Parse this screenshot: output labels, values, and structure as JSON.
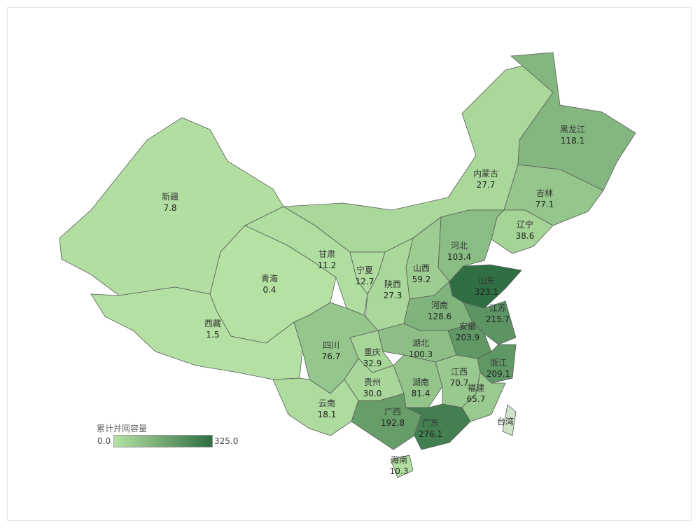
{
  "legend": {
    "title": "累计并网容量",
    "min_label": "0.0",
    "max_label": "325.0",
    "min": 0,
    "max": 325,
    "color_low": "#b5e2a3",
    "color_high": "#2f6d42"
  },
  "no_data_color": "#cfe3c8",
  "provinces": [
    {
      "id": "xinjiang",
      "name": "新疆",
      "value": 7.8,
      "display": "7.8"
    },
    {
      "id": "xizang",
      "name": "西藏",
      "value": 1.5,
      "display": "1.5"
    },
    {
      "id": "qinghai",
      "name": "青海",
      "value": 0.4,
      "display": "0.4"
    },
    {
      "id": "gansu",
      "name": "甘肃",
      "value": 11.2,
      "display": "11.2"
    },
    {
      "id": "neimenggu",
      "name": "内蒙古",
      "value": 27.7,
      "display": "27.7"
    },
    {
      "id": "heilongjiang",
      "name": "黑龙江",
      "value": 118.1,
      "display": "118.1"
    },
    {
      "id": "jilin",
      "name": "吉林",
      "value": 77.1,
      "display": "77.1"
    },
    {
      "id": "liaoning",
      "name": "辽宁",
      "value": 38.6,
      "display": "38.6"
    },
    {
      "id": "hebei",
      "name": "河北",
      "value": 103.4,
      "display": "103.4"
    },
    {
      "id": "shanxi",
      "name": "山西",
      "value": 59.2,
      "display": "59.2"
    },
    {
      "id": "shaanxi",
      "name": "陕西",
      "value": 27.3,
      "display": "27.3"
    },
    {
      "id": "ningxia",
      "name": "宁夏",
      "value": 12.7,
      "display": "12.7"
    },
    {
      "id": "shandong",
      "name": "山东",
      "value": 323.1,
      "display": "323.1"
    },
    {
      "id": "henan",
      "name": "河南",
      "value": 128.6,
      "display": "128.6"
    },
    {
      "id": "jiangsu",
      "name": "江苏",
      "value": 215.7,
      "display": "215.7"
    },
    {
      "id": "anhui",
      "name": "安徽",
      "value": 203.9,
      "display": "203.9"
    },
    {
      "id": "zhejiang",
      "name": "浙江",
      "value": 209.1,
      "display": "209.1"
    },
    {
      "id": "hubei",
      "name": "湖北",
      "value": 100.3,
      "display": "100.3"
    },
    {
      "id": "chongqing",
      "name": "重庆",
      "value": 32.9,
      "display": "32.9"
    },
    {
      "id": "sichuan",
      "name": "四川",
      "value": 76.7,
      "display": "76.7"
    },
    {
      "id": "guizhou",
      "name": "贵州",
      "value": 30.0,
      "display": "30.0"
    },
    {
      "id": "yunnan",
      "name": "云南",
      "value": 18.1,
      "display": "18.1"
    },
    {
      "id": "hunan",
      "name": "湖南",
      "value": 81.4,
      "display": "81.4"
    },
    {
      "id": "jiangxi",
      "name": "江西",
      "value": 70.7,
      "display": "70.7"
    },
    {
      "id": "fujian",
      "name": "福建",
      "value": 65.7,
      "display": "65.7"
    },
    {
      "id": "guangxi",
      "name": "广西",
      "value": 192.8,
      "display": "192.8"
    },
    {
      "id": "guangdong",
      "name": "广东",
      "value": 276.1,
      "display": "276.1"
    },
    {
      "id": "hainan",
      "name": "海南",
      "value": 10.3,
      "display": "10.3"
    },
    {
      "id": "taiwan",
      "name": "台湾",
      "value": null,
      "display": ""
    }
  ]
}
